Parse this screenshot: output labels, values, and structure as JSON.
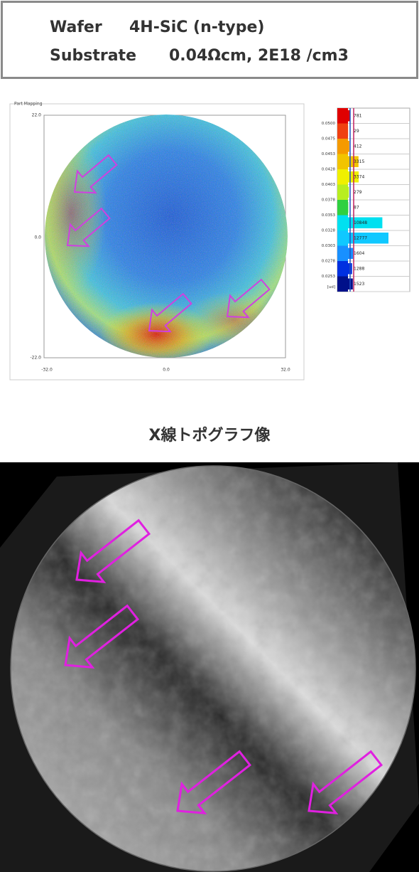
{
  "header": {
    "rows": [
      {
        "label": "Wafer",
        "value": "4H-SiC (n-type)"
      },
      {
        "label": "Substrate",
        "value": "0.04Ωcm,  2E18 /cm3"
      }
    ]
  },
  "mapping": {
    "title": "Part Mapping",
    "y_ticks": [
      "22.0",
      "0.0",
      "-22.0"
    ],
    "x_ticks": [
      "-32.0",
      "0.0",
      "32.0"
    ],
    "scale_labels": [
      "0.0500",
      "0.0475",
      "0.0453",
      "0.0428",
      "0.0403",
      "0.0378",
      "0.0353",
      "0.0328",
      "0.0303",
      "0.0278",
      "0.0253"
    ],
    "unit": "[ud]",
    "counts": [
      781,
      29,
      412,
      3315,
      3374,
      279,
      87,
      10848,
      12777,
      1604,
      1288,
      1523
    ],
    "colors": [
      "#e00000",
      "#f04010",
      "#f59a00",
      "#f2c400",
      "#f0f000",
      "#b8ee20",
      "#30d040",
      "#00e0f0",
      "#10c8ff",
      "#1890ff",
      "#0030e0",
      "#00108a"
    ]
  },
  "topography": {
    "title": "X線トポグラフ像"
  }
}
